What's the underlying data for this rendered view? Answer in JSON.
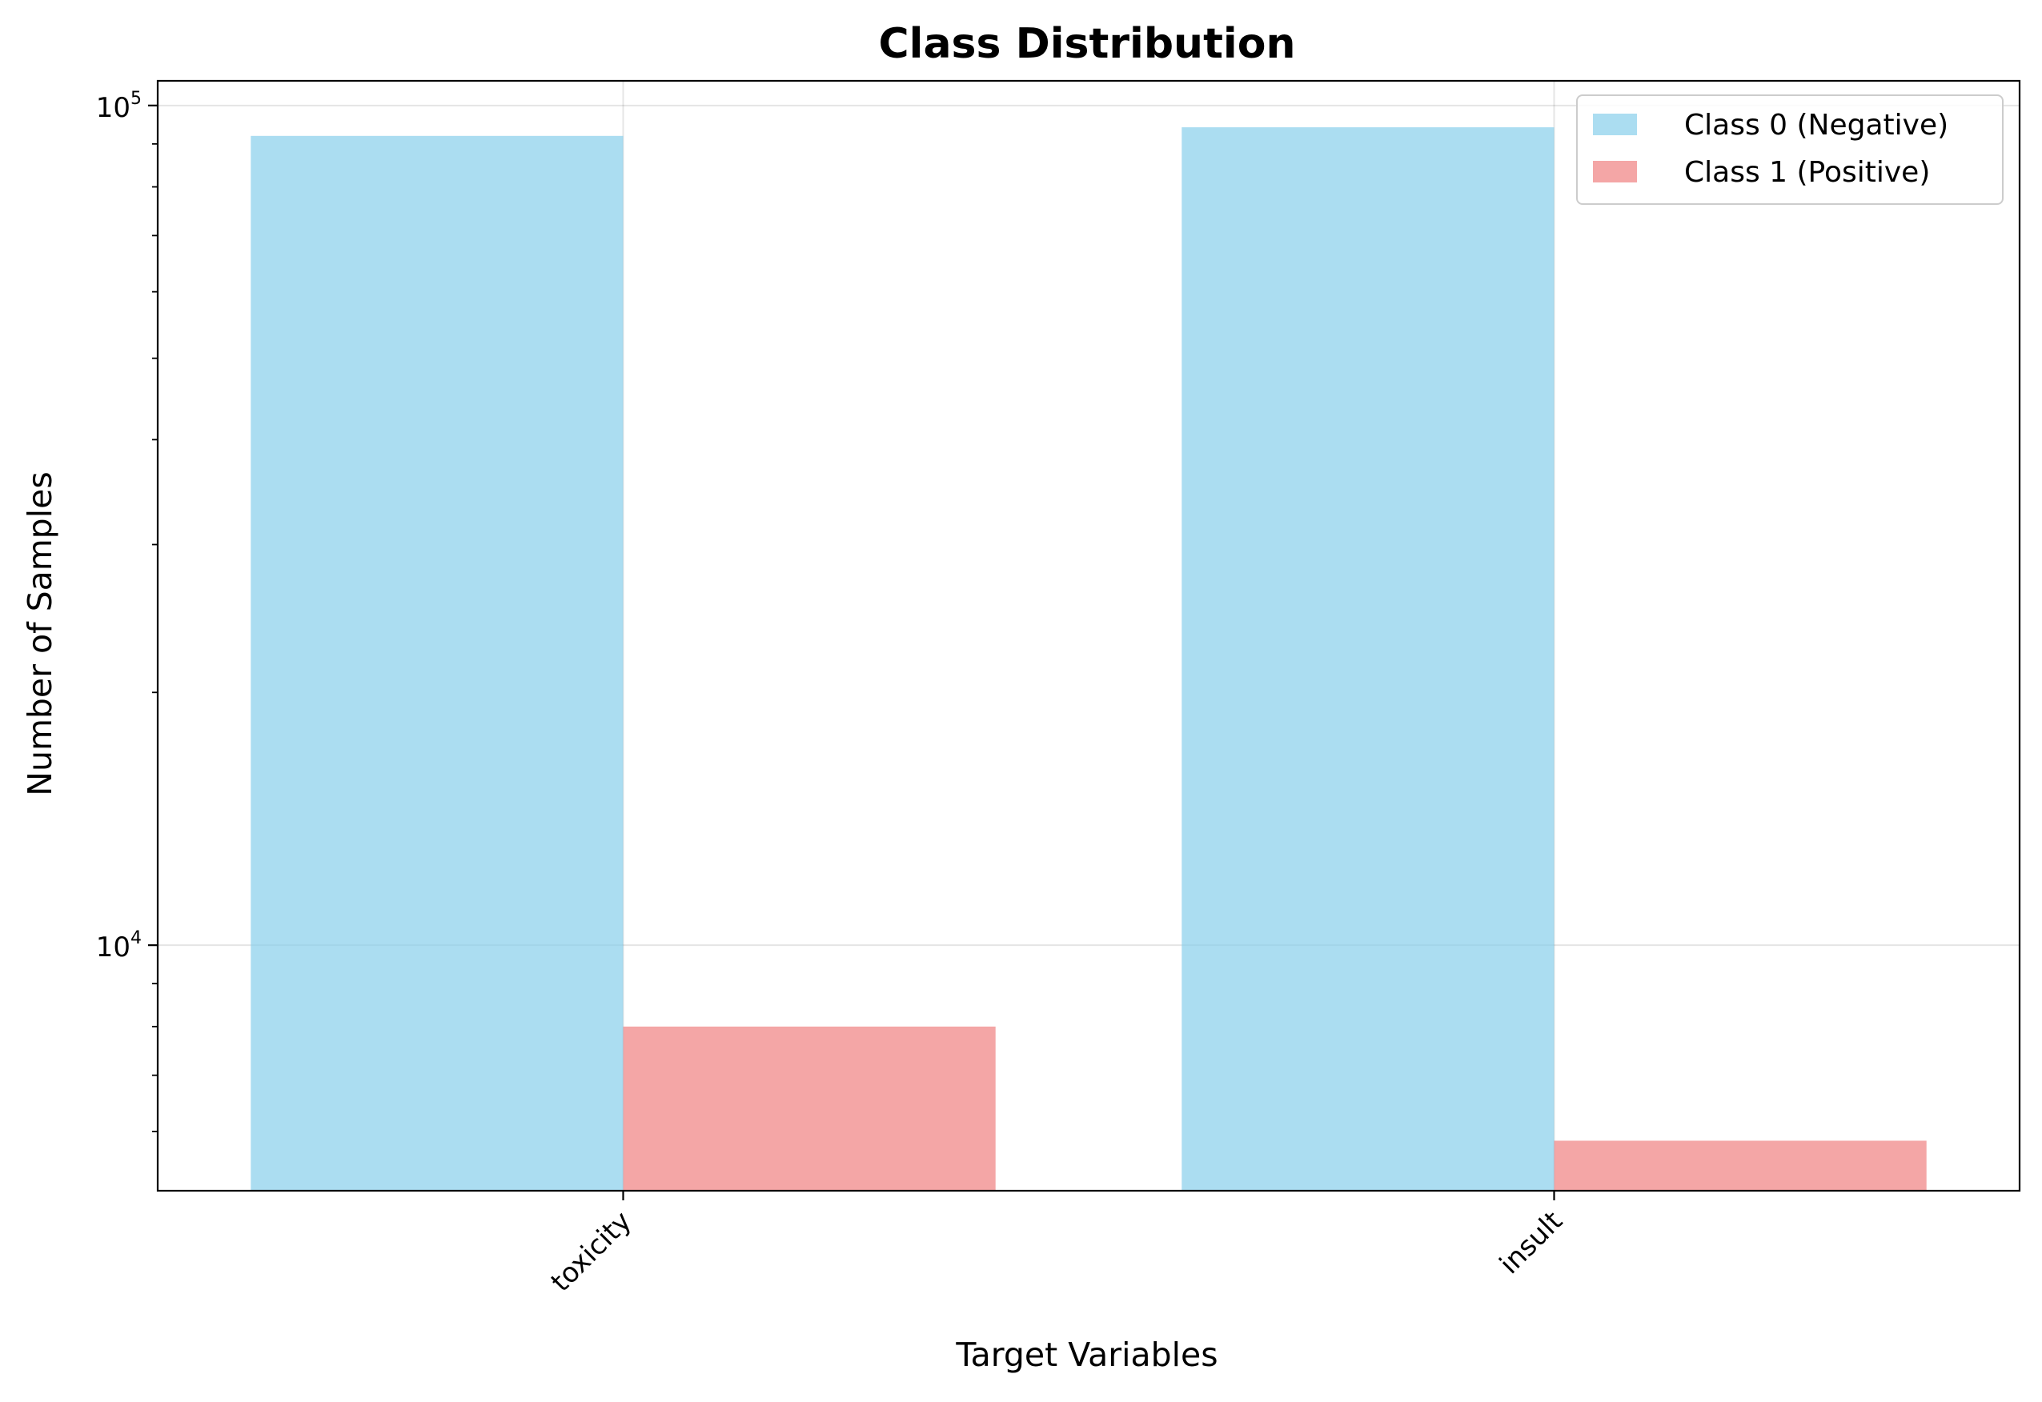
{
  "chart_data": {
    "type": "bar",
    "title": "Class Distribution",
    "xlabel": "Target Variables",
    "ylabel": "Number of Samples",
    "yscale": "log",
    "ylim": [
      5100,
      107000
    ],
    "y_major_ticks": [
      {
        "value": 10000,
        "base": "10",
        "exp": "4"
      },
      {
        "value": 100000,
        "base": "10",
        "exp": "5"
      }
    ],
    "categories": [
      "toxicity",
      "insult"
    ],
    "series": [
      {
        "name": "Class 0 (Negative)",
        "color": "#87CEEB",
        "values": [
          92000,
          94200
        ]
      },
      {
        "name": "Class 1 (Positive)",
        "color": "#F08080",
        "values": [
          8000,
          5850
        ]
      }
    ],
    "grid": true,
    "legend_position": "top-right",
    "bar_alpha": 0.7
  }
}
